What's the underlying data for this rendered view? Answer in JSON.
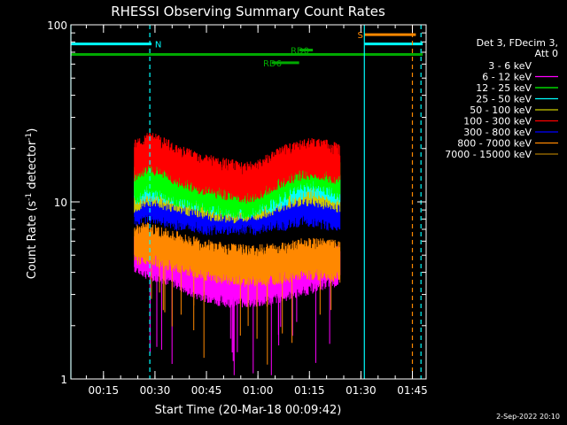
{
  "chart_data": {
    "type": "line",
    "title": "RHESSI Observing Summary Count Rates",
    "xlabel": "Start Time (20-Mar-18 00:09:42)",
    "ylabel_main": "Count Rate (s",
    "ylabel_sup1": "-1",
    "ylabel_mid": " detector",
    "ylabel_sup2": "-1",
    "ylabel_end": ")",
    "x_axis_units": "minutes since 00:00 UT",
    "xlim": [
      5.5,
      109
    ],
    "ylim": [
      1,
      100
    ],
    "yscale": "log",
    "x_ticks": [
      {
        "value": 15,
        "label": "00:15"
      },
      {
        "value": 30,
        "label": "00:30"
      },
      {
        "value": 45,
        "label": "00:45"
      },
      {
        "value": 60,
        "label": "01:00"
      },
      {
        "value": 75,
        "label": "01:15"
      },
      {
        "value": 90,
        "label": "01:30"
      },
      {
        "value": 105,
        "label": "01:45"
      }
    ],
    "y_ticks": [
      {
        "value": 1,
        "label": "1"
      },
      {
        "value": 10,
        "label": "10"
      },
      {
        "value": 100,
        "label": "100"
      }
    ],
    "legend": {
      "header": [
        "Det 3, FDecim 3,",
        "Att 0"
      ],
      "placement": "right"
    },
    "series": [
      {
        "name": "3 - 6 keV",
        "color": "#000000",
        "x": [],
        "y": []
      },
      {
        "name": "6 - 12 keV",
        "color": "#ff00ff",
        "x": [
          24,
          28,
          32,
          36,
          40,
          44,
          48,
          52,
          56,
          60,
          64,
          68,
          72,
          76,
          80,
          84
        ],
        "y": [
          5.5,
          5.0,
          4.8,
          4.5,
          4.0,
          3.8,
          3.6,
          3.5,
          3.5,
          3.5,
          3.6,
          3.8,
          4.0,
          4.2,
          4.5,
          4.6
        ]
      },
      {
        "name": "12 - 25 keV",
        "color": "#00ff00",
        "x": [
          24,
          28,
          32,
          36,
          40,
          44,
          48,
          52,
          56,
          60,
          64,
          68,
          72,
          76,
          80,
          84
        ],
        "y": [
          13,
          15,
          14,
          13,
          12.5,
          12,
          11.5,
          11,
          11,
          11.5,
          12.5,
          14,
          15.5,
          16,
          15,
          14
        ]
      },
      {
        "name": "25 - 50 keV",
        "color": "#00ffff",
        "x": [
          24,
          28,
          32,
          36,
          40,
          44,
          48,
          52,
          56,
          60,
          64,
          68,
          72,
          76,
          80,
          84
        ],
        "y": [
          13,
          14,
          13.5,
          13,
          12.5,
          12,
          11.5,
          11,
          11,
          11.5,
          12,
          13,
          14,
          14.5,
          14,
          13
        ]
      },
      {
        "name": "50 - 100 keV",
        "color": "#cccc00",
        "x": [
          24,
          28,
          32,
          36,
          40,
          44,
          48,
          52,
          56,
          60,
          64,
          68,
          72,
          76,
          80,
          84
        ],
        "y": [
          12,
          13,
          12.5,
          12,
          11.5,
          11,
          10.5,
          10.5,
          10.5,
          11,
          11.5,
          12.5,
          13,
          13,
          12.5,
          12
        ]
      },
      {
        "name": "100 - 300 keV",
        "color": "#ff0000",
        "x": [
          24,
          28,
          32,
          36,
          40,
          44,
          48,
          52,
          56,
          60,
          64,
          68,
          72,
          76,
          80,
          84
        ],
        "y": [
          18,
          20,
          19,
          17,
          16,
          15,
          14.5,
          14,
          13.5,
          14,
          15.5,
          17,
          18,
          18.5,
          18,
          17
        ]
      },
      {
        "name": "300 - 800 keV",
        "color": "#0000ff",
        "x": [
          24,
          28,
          32,
          36,
          40,
          44,
          48,
          52,
          56,
          60,
          64,
          68,
          72,
          76,
          80,
          84
        ],
        "y": [
          10,
          10.5,
          10,
          9.5,
          9.5,
          9,
          9,
          9,
          9,
          9,
          9.5,
          9.5,
          10,
          10,
          9.5,
          9.5
        ]
      },
      {
        "name": "800 - 7000 keV",
        "color": "#ff8800",
        "x": [
          24,
          28,
          32,
          36,
          40,
          44,
          48,
          52,
          56,
          60,
          64,
          68,
          72,
          76,
          80,
          84
        ],
        "y": [
          6,
          6.2,
          5.8,
          5.5,
          5.2,
          5,
          4.8,
          4.7,
          4.6,
          4.6,
          4.7,
          4.8,
          5,
          5,
          5,
          4.8
        ]
      },
      {
        "name": "7000 - 15000 keV",
        "color": "#aa7700",
        "x": [],
        "y": []
      }
    ],
    "annotations": [
      {
        "text": "N",
        "color": "#00ffff"
      },
      {
        "text": "S",
        "color": "#ff8800"
      },
      {
        "text": "RD0",
        "color": "#00aa00"
      },
      {
        "text": "RD6",
        "color": "#00aa00"
      }
    ],
    "state_bars": [
      {
        "label": "N",
        "color": "#00ffff",
        "x0": 5.5,
        "x1": 29,
        "y": 78
      },
      {
        "label": "",
        "color": "#00ffff",
        "x0": 91,
        "x1": 108,
        "y": 78
      },
      {
        "label": "S",
        "color": "#ff8800",
        "x0": 91,
        "x1": 106,
        "y": 88
      },
      {
        "label": "",
        "color": "#00aa00",
        "x0": 5.5,
        "x1": 108,
        "y": 68
      },
      {
        "label": "RD0",
        "color": "#00aa00",
        "x0": 72,
        "x1": 76,
        "y": 72
      },
      {
        "label": "RD6",
        "color": "#00aa00",
        "x0": 64,
        "x1": 72,
        "y": 61
      }
    ],
    "vertical_markers": [
      {
        "x": 5.5,
        "color": "#00ffff",
        "style": "solid"
      },
      {
        "x": 28.5,
        "color": "#00ffff",
        "style": "dashed"
      },
      {
        "x": 91,
        "color": "#00ffff",
        "style": "solid"
      },
      {
        "x": 105,
        "color": "#ff8800",
        "style": "dashed"
      },
      {
        "x": 107.5,
        "color": "#00ffff",
        "style": "dashed"
      }
    ]
  },
  "footer": {
    "date_stamp": "2-Sep-2022 20:10"
  }
}
